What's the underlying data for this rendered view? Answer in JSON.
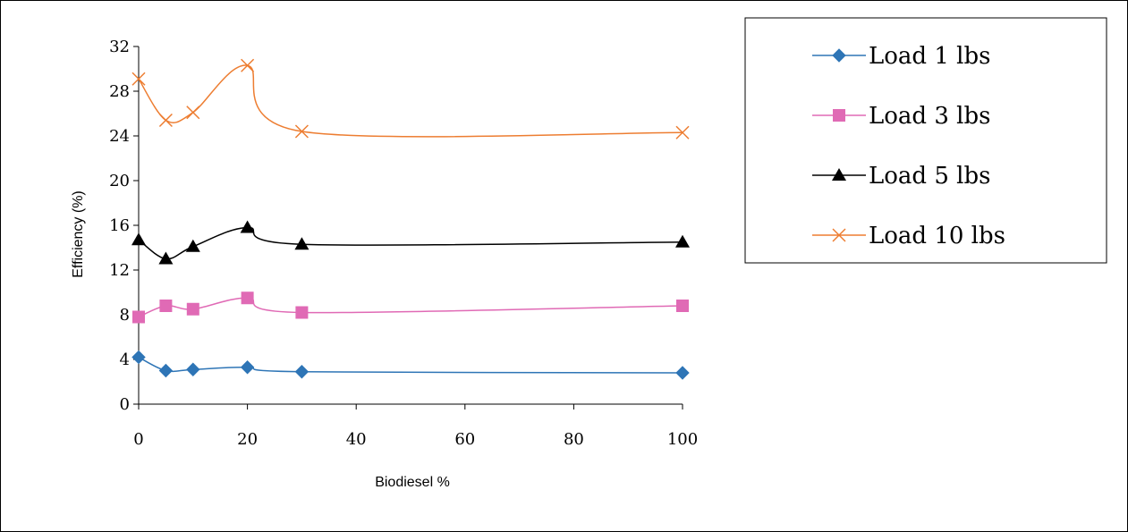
{
  "chart_data": {
    "type": "line",
    "xlabel": "Biodiesel %",
    "ylabel": "Efficiency (%)",
    "x": [
      0,
      5,
      10,
      20,
      30,
      100
    ],
    "xlim": [
      0,
      100
    ],
    "ylim": [
      0,
      32
    ],
    "x_ticks": [
      0,
      20,
      40,
      60,
      80,
      100
    ],
    "y_ticks": [
      0,
      4,
      8,
      12,
      16,
      20,
      24,
      28,
      32
    ],
    "grid": false,
    "legend_position": "top-right",
    "series": [
      {
        "name": "Load 1 lbs",
        "values": [
          4.2,
          3.0,
          3.1,
          3.3,
          2.9,
          2.8
        ],
        "color": "#2E75B6",
        "marker": "diamond"
      },
      {
        "name": "Load 3 lbs",
        "values": [
          7.8,
          8.8,
          8.5,
          9.5,
          8.2,
          8.8
        ],
        "color": "#E06AB5",
        "marker": "square"
      },
      {
        "name": "Load 5 lbs",
        "values": [
          14.7,
          13.0,
          14.1,
          15.8,
          14.3,
          14.5
        ],
        "color": "#000000",
        "marker": "triangle"
      },
      {
        "name": "Load 10 lbs",
        "values": [
          29.1,
          25.4,
          26.1,
          30.3,
          24.4,
          24.3
        ],
        "color": "#ED7D31",
        "marker": "x"
      }
    ]
  }
}
